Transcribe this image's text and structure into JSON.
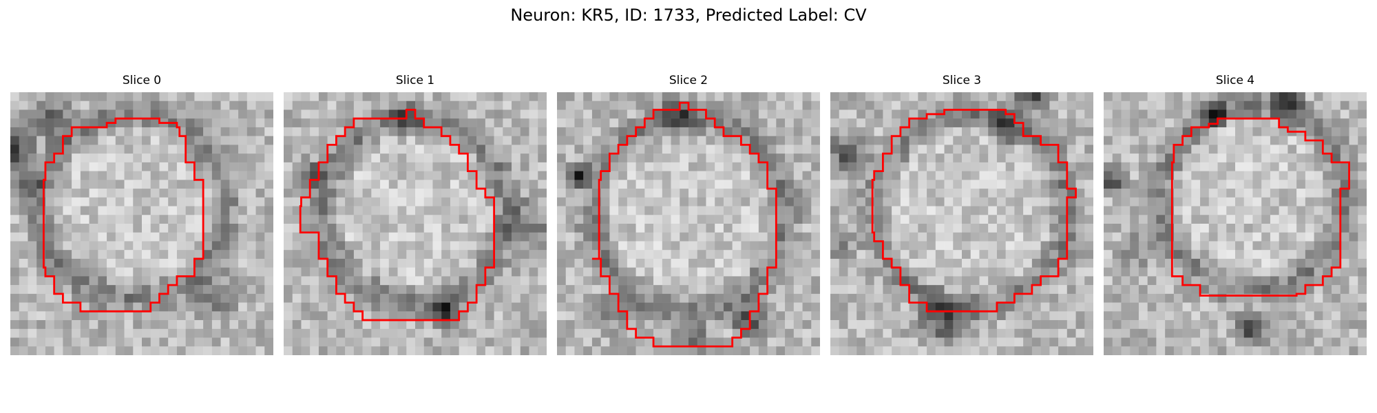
{
  "figure": {
    "title": "Neuron: KR5, ID: 1733, Predicted Label: CV"
  },
  "panels": [
    {
      "title": "Slice 0"
    },
    {
      "title": "Slice 1"
    },
    {
      "title": "Slice 2"
    },
    {
      "title": "Slice 3"
    },
    {
      "title": "Slice 4"
    }
  ],
  "colors": {
    "contour": "#ff0000",
    "background": "#ffffff",
    "colormap": "grayscale"
  }
}
